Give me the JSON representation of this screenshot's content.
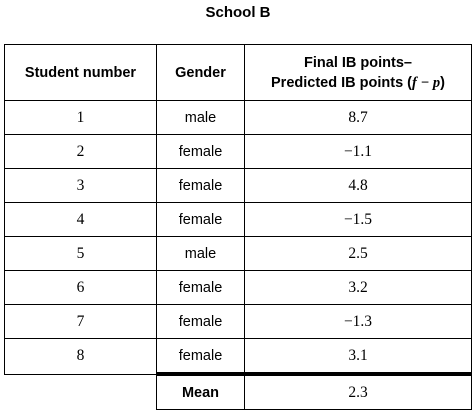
{
  "title": "School B",
  "headers": {
    "student_number": "Student number",
    "gender": "Gender",
    "diff_line1": "Final IB points–",
    "diff_line2": "Predicted IB points (",
    "diff_formula": "f − p",
    "diff_close": ")"
  },
  "rows": [
    {
      "student": "1",
      "gender": "male",
      "diff": "8.7"
    },
    {
      "student": "2",
      "gender": "female",
      "diff": "−1.1"
    },
    {
      "student": "3",
      "gender": "female",
      "diff": "4.8"
    },
    {
      "student": "4",
      "gender": "female",
      "diff": "−1.5"
    },
    {
      "student": "5",
      "gender": "male",
      "diff": "2.5"
    },
    {
      "student": "6",
      "gender": "female",
      "diff": "3.2"
    },
    {
      "student": "7",
      "gender": "female",
      "diff": "−1.3"
    },
    {
      "student": "8",
      "gender": "female",
      "diff": "3.1"
    }
  ],
  "mean": {
    "label": "Mean",
    "value": "2.3"
  }
}
